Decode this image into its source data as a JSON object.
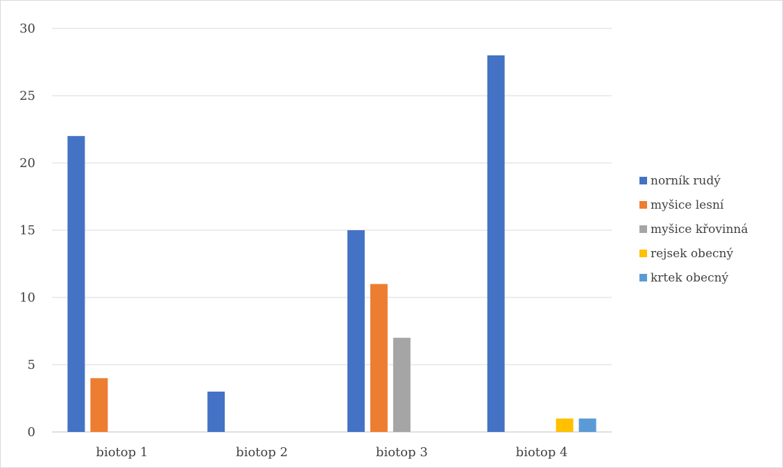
{
  "chart_data": {
    "type": "bar",
    "title": "",
    "xlabel": "",
    "ylabel": "",
    "categories": [
      "biotop 1",
      "biotop 2",
      "biotop 3",
      "biotop 4"
    ],
    "ylim": [
      0,
      30
    ],
    "yticks": [
      0,
      5,
      10,
      15,
      20,
      25,
      30
    ],
    "grid": true,
    "legend_position": "right",
    "series": [
      {
        "name": "norník rudý",
        "color": "#4472C4",
        "values": [
          22,
          3,
          15,
          28
        ]
      },
      {
        "name": "myšice lesní",
        "color": "#ED7D31",
        "values": [
          4,
          0,
          11,
          0
        ]
      },
      {
        "name": "myšice křovinná",
        "color": "#A5A5A5",
        "values": [
          0,
          0,
          7,
          0
        ]
      },
      {
        "name": "rejsek obecný",
        "color": "#FFC000",
        "values": [
          0,
          0,
          0,
          1
        ]
      },
      {
        "name": "krtek obecný",
        "color": "#5B9BD5",
        "values": [
          0,
          0,
          0,
          1
        ]
      }
    ]
  }
}
